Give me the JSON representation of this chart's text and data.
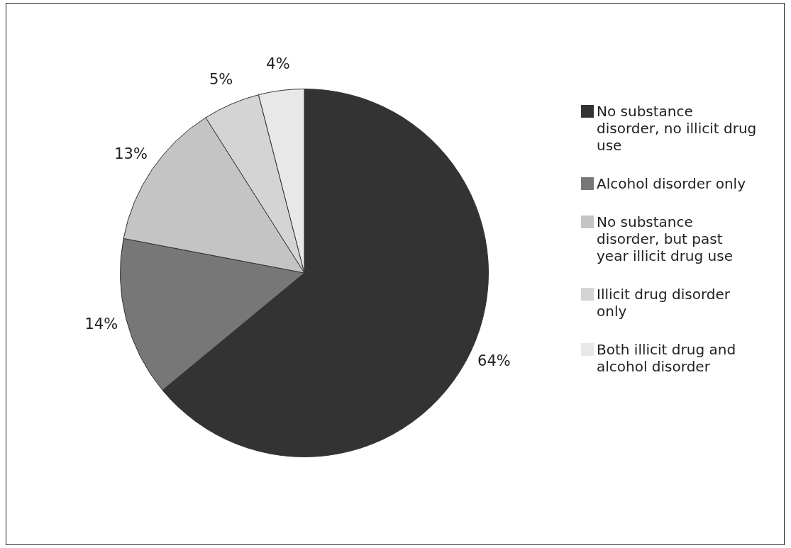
{
  "chart_data": {
    "type": "pie",
    "categories": [
      "No substance disorder, no illicit drug use",
      "Alcohol disorder only",
      "No substance disorder, but past year illicit drug use",
      "Illicit drug disorder only",
      "Both illicit drug and alcohol disorder"
    ],
    "values": [
      64,
      14,
      13,
      5,
      4
    ],
    "colors": [
      "#333333",
      "#777777",
      "#c4c4c4",
      "#d4d4d4",
      "#e8e8e8"
    ],
    "value_labels": [
      "64%",
      "14%",
      "13%",
      "5%",
      "4%"
    ],
    "legend": "right"
  }
}
